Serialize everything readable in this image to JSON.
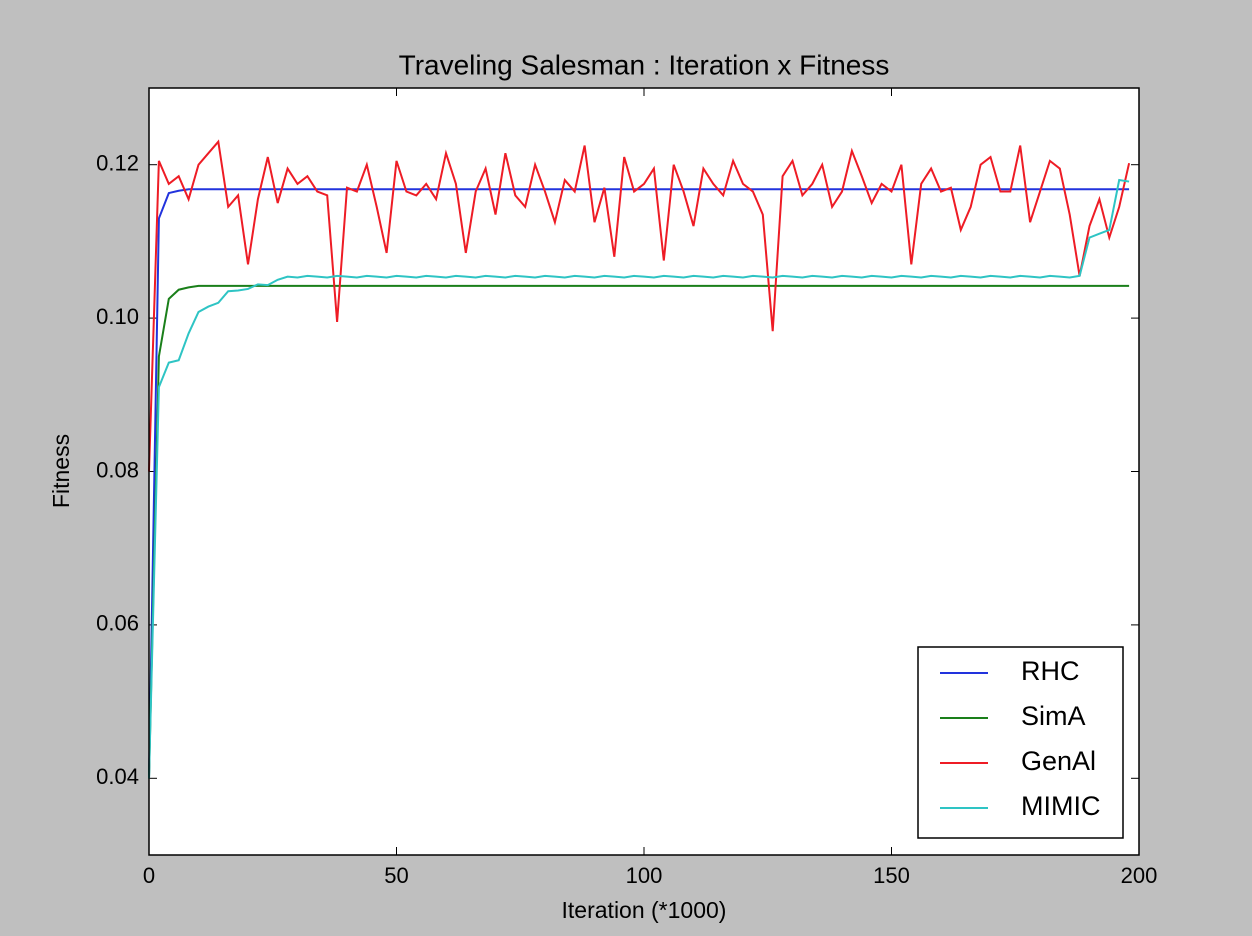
{
  "chart_data": {
    "type": "line",
    "title": "Traveling Salesman : Iteration x Fitness",
    "x_label": "Iteration (*1000)",
    "y_label": "Fitness",
    "xlim": [
      0,
      200
    ],
    "xticks": [
      0,
      50,
      100,
      150,
      200
    ],
    "ylim": [
      0.03,
      0.13
    ],
    "yticks": [
      0.04,
      0.06,
      0.08,
      {
        "value": 0.1,
        "label": "0.10"
      },
      0.12
    ],
    "legend": "lower right",
    "grid": false,
    "x": [
      0,
      2,
      4,
      6,
      8,
      10,
      12,
      14,
      16,
      18,
      20,
      22,
      24,
      26,
      28,
      30,
      32,
      34,
      36,
      38,
      40,
      42,
      44,
      46,
      48,
      50,
      52,
      54,
      56,
      58,
      60,
      62,
      64,
      66,
      68,
      70,
      72,
      74,
      76,
      78,
      80,
      82,
      84,
      86,
      88,
      90,
      92,
      94,
      96,
      98,
      100,
      102,
      104,
      106,
      108,
      110,
      112,
      114,
      116,
      118,
      120,
      122,
      124,
      126,
      128,
      130,
      132,
      134,
      136,
      138,
      140,
      142,
      144,
      146,
      148,
      150,
      152,
      154,
      156,
      158,
      160,
      162,
      164,
      166,
      168,
      170,
      172,
      174,
      176,
      178,
      180,
      182,
      184,
      186,
      188,
      190,
      192,
      194,
      196,
      198
    ],
    "series": [
      {
        "name": "RHC",
        "color": "#2233dd",
        "values": [
          0.04,
          0.113,
          0.1163,
          0.1166,
          0.1168,
          0.1168,
          0.1168,
          0.1168,
          0.1168,
          0.1168,
          0.1168,
          0.1168,
          0.1168,
          0.1168,
          0.1168,
          0.1168,
          0.1168,
          0.1168,
          0.1168,
          0.1168,
          0.1168,
          0.1168,
          0.1168,
          0.1168,
          0.1168,
          0.1168,
          0.1168,
          0.1168,
          0.1168,
          0.1168,
          0.1168,
          0.1168,
          0.1168,
          0.1168,
          0.1168,
          0.1168,
          0.1168,
          0.1168,
          0.1168,
          0.1168,
          0.1168,
          0.1168,
          0.1168,
          0.1168,
          0.1168,
          0.1168,
          0.1168,
          0.1168,
          0.1168,
          0.1168,
          0.1168,
          0.1168,
          0.1168,
          0.1168,
          0.1168,
          0.1168,
          0.1168,
          0.1168,
          0.1168,
          0.1168,
          0.1168,
          0.1168,
          0.1168,
          0.1168,
          0.1168,
          0.1168,
          0.1168,
          0.1168,
          0.1168,
          0.1168,
          0.1168,
          0.1168,
          0.1168,
          0.1168,
          0.1168,
          0.1168,
          0.1168,
          0.1168,
          0.1168,
          0.1168,
          0.1168,
          0.1168,
          0.1168,
          0.1168,
          0.1168,
          0.1168,
          0.1168,
          0.1168,
          0.1168,
          0.1168,
          0.1168,
          0.1168,
          0.1168,
          0.1168,
          0.1168,
          0.1168,
          0.1168,
          0.1168,
          0.1168,
          0.1168
        ]
      },
      {
        "name": "SimA",
        "color": "#1a7f1a",
        "values": [
          0.04,
          0.095,
          0.1025,
          0.1037,
          0.104,
          0.1042,
          0.1042,
          0.1042,
          0.1042,
          0.1042,
          0.1042,
          0.1042,
          0.1042,
          0.1042,
          0.1042,
          0.1042,
          0.1042,
          0.1042,
          0.1042,
          0.1042,
          0.1042,
          0.1042,
          0.1042,
          0.1042,
          0.1042,
          0.1042,
          0.1042,
          0.1042,
          0.1042,
          0.1042,
          0.1042,
          0.1042,
          0.1042,
          0.1042,
          0.1042,
          0.1042,
          0.1042,
          0.1042,
          0.1042,
          0.1042,
          0.1042,
          0.1042,
          0.1042,
          0.1042,
          0.1042,
          0.1042,
          0.1042,
          0.1042,
          0.1042,
          0.1042,
          0.1042,
          0.1042,
          0.1042,
          0.1042,
          0.1042,
          0.1042,
          0.1042,
          0.1042,
          0.1042,
          0.1042,
          0.1042,
          0.1042,
          0.1042,
          0.1042,
          0.1042,
          0.1042,
          0.1042,
          0.1042,
          0.1042,
          0.1042,
          0.1042,
          0.1042,
          0.1042,
          0.1042,
          0.1042,
          0.1042,
          0.1042,
          0.1042,
          0.1042,
          0.1042,
          0.1042,
          0.1042,
          0.1042,
          0.1042,
          0.1042,
          0.1042,
          0.1042,
          0.1042,
          0.1042,
          0.1042,
          0.1042,
          0.1042,
          0.1042,
          0.1042,
          0.1042,
          0.1042,
          0.1042,
          0.1042,
          0.1042,
          0.1042
        ]
      },
      {
        "name": "GenAl",
        "color": "#ee1c25",
        "values": [
          0.08,
          0.1205,
          0.1175,
          0.1185,
          0.1155,
          0.12,
          0.1215,
          0.123,
          0.1145,
          0.116,
          0.107,
          0.1155,
          0.121,
          0.115,
          0.1195,
          0.1175,
          0.1185,
          0.1165,
          0.116,
          0.0995,
          0.117,
          0.1165,
          0.12,
          0.1145,
          0.1085,
          0.1205,
          0.1165,
          0.116,
          0.1175,
          0.1155,
          0.1215,
          0.1175,
          0.1085,
          0.1165,
          0.1195,
          0.1135,
          0.1215,
          0.116,
          0.1145,
          0.12,
          0.1165,
          0.1125,
          0.118,
          0.1165,
          0.1225,
          0.1125,
          0.117,
          0.108,
          0.121,
          0.1165,
          0.1175,
          0.1195,
          0.1075,
          0.12,
          0.1165,
          0.112,
          0.1195,
          0.1175,
          0.116,
          0.1205,
          0.1175,
          0.1165,
          0.1135,
          0.0983,
          0.1185,
          0.1205,
          0.116,
          0.1175,
          0.12,
          0.1145,
          0.1165,
          0.1218,
          0.1185,
          0.115,
          0.1175,
          0.1165,
          0.12,
          0.107,
          0.1175,
          0.1195,
          0.1165,
          0.117,
          0.1115,
          0.1145,
          0.12,
          0.121,
          0.1165,
          0.1165,
          0.1225,
          0.1125,
          0.1165,
          0.1205,
          0.1195,
          0.1135,
          0.1055,
          0.112,
          0.1155,
          0.1105,
          0.1145,
          0.1202
        ]
      },
      {
        "name": "MIMIC",
        "color": "#2ec4c4",
        "values": [
          0.04,
          0.091,
          0.0942,
          0.0945,
          0.098,
          0.1008,
          0.1015,
          0.102,
          0.1035,
          0.1036,
          0.1038,
          0.1044,
          0.1043,
          0.105,
          0.1054,
          0.1053,
          0.1055,
          0.1054,
          0.1053,
          0.1055,
          0.1054,
          0.1053,
          0.1055,
          0.1054,
          0.1053,
          0.1055,
          0.1054,
          0.1053,
          0.1055,
          0.1054,
          0.1053,
          0.1055,
          0.1054,
          0.1053,
          0.1055,
          0.1054,
          0.1053,
          0.1055,
          0.1054,
          0.1053,
          0.1055,
          0.1054,
          0.1053,
          0.1055,
          0.1054,
          0.1053,
          0.1055,
          0.1054,
          0.1053,
          0.1055,
          0.1054,
          0.1053,
          0.1055,
          0.1054,
          0.1053,
          0.1055,
          0.1054,
          0.1053,
          0.1055,
          0.1054,
          0.1053,
          0.1055,
          0.1054,
          0.1053,
          0.1055,
          0.1054,
          0.1053,
          0.1055,
          0.1054,
          0.1053,
          0.1055,
          0.1054,
          0.1053,
          0.1055,
          0.1054,
          0.1053,
          0.1055,
          0.1054,
          0.1053,
          0.1055,
          0.1054,
          0.1053,
          0.1055,
          0.1054,
          0.1053,
          0.1055,
          0.1054,
          0.1053,
          0.1055,
          0.1054,
          0.1053,
          0.1055,
          0.1054,
          0.1053,
          0.1055,
          0.1105,
          0.111,
          0.1115,
          0.118,
          0.1178
        ]
      }
    ]
  }
}
